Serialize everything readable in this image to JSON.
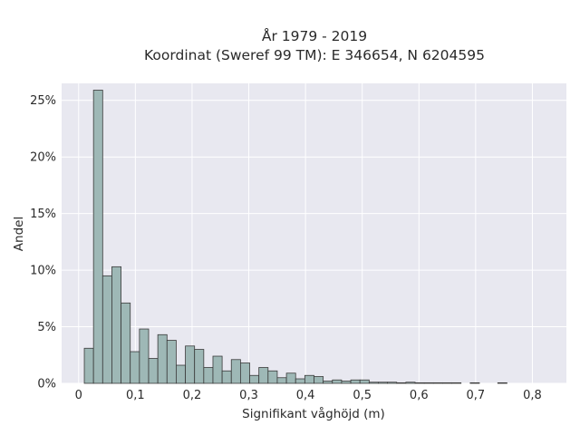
{
  "chart_data": {
    "type": "bar",
    "title": "År 1979 - 2019",
    "subtitle": "Koordinat (Sweref 99 TM): E 346654, N 6204595",
    "xlabel": "Signifikant våghöjd (m)",
    "ylabel": "Andel",
    "xlim": [
      -0.03,
      0.86
    ],
    "ylim": [
      0,
      26.5
    ],
    "xticks": [
      {
        "value": 0,
        "label": "0"
      },
      {
        "value": 0.1,
        "label": "0,1"
      },
      {
        "value": 0.2,
        "label": "0,2"
      },
      {
        "value": 0.3,
        "label": "0,3"
      },
      {
        "value": 0.4,
        "label": "0,4"
      },
      {
        "value": 0.5,
        "label": "0,5"
      },
      {
        "value": 0.6,
        "label": "0,6"
      },
      {
        "value": 0.7,
        "label": "0,7"
      },
      {
        "value": 0.8,
        "label": "0,8"
      }
    ],
    "yticks": [
      {
        "value": 0,
        "label": "0%"
      },
      {
        "value": 5,
        "label": "5%"
      },
      {
        "value": 10,
        "label": "10%"
      },
      {
        "value": 15,
        "label": "15%"
      },
      {
        "value": 20,
        "label": "20%"
      },
      {
        "value": 25,
        "label": "25%"
      }
    ],
    "bin_width": 0.0162,
    "bin_start": 0.01,
    "values": [
      3.1,
      25.9,
      9.5,
      10.3,
      7.1,
      2.8,
      4.8,
      2.2,
      4.3,
      3.8,
      1.6,
      3.3,
      3.0,
      1.4,
      2.4,
      1.1,
      2.1,
      1.8,
      0.7,
      1.4,
      1.1,
      0.5,
      0.9,
      0.4,
      0.7,
      0.6,
      0.2,
      0.3,
      0.2,
      0.3,
      0.3,
      0.1,
      0.1,
      0.1,
      0.05,
      0.1,
      0.05,
      0.05,
      0.05,
      0.05,
      0.05,
      0.0,
      0.05,
      0.0,
      0.0,
      0.05
    ],
    "grid": true,
    "bar_color": "#9eb8b6",
    "bar_edge": "#3a3a3a",
    "plot_bg": "#e8e8f0"
  }
}
